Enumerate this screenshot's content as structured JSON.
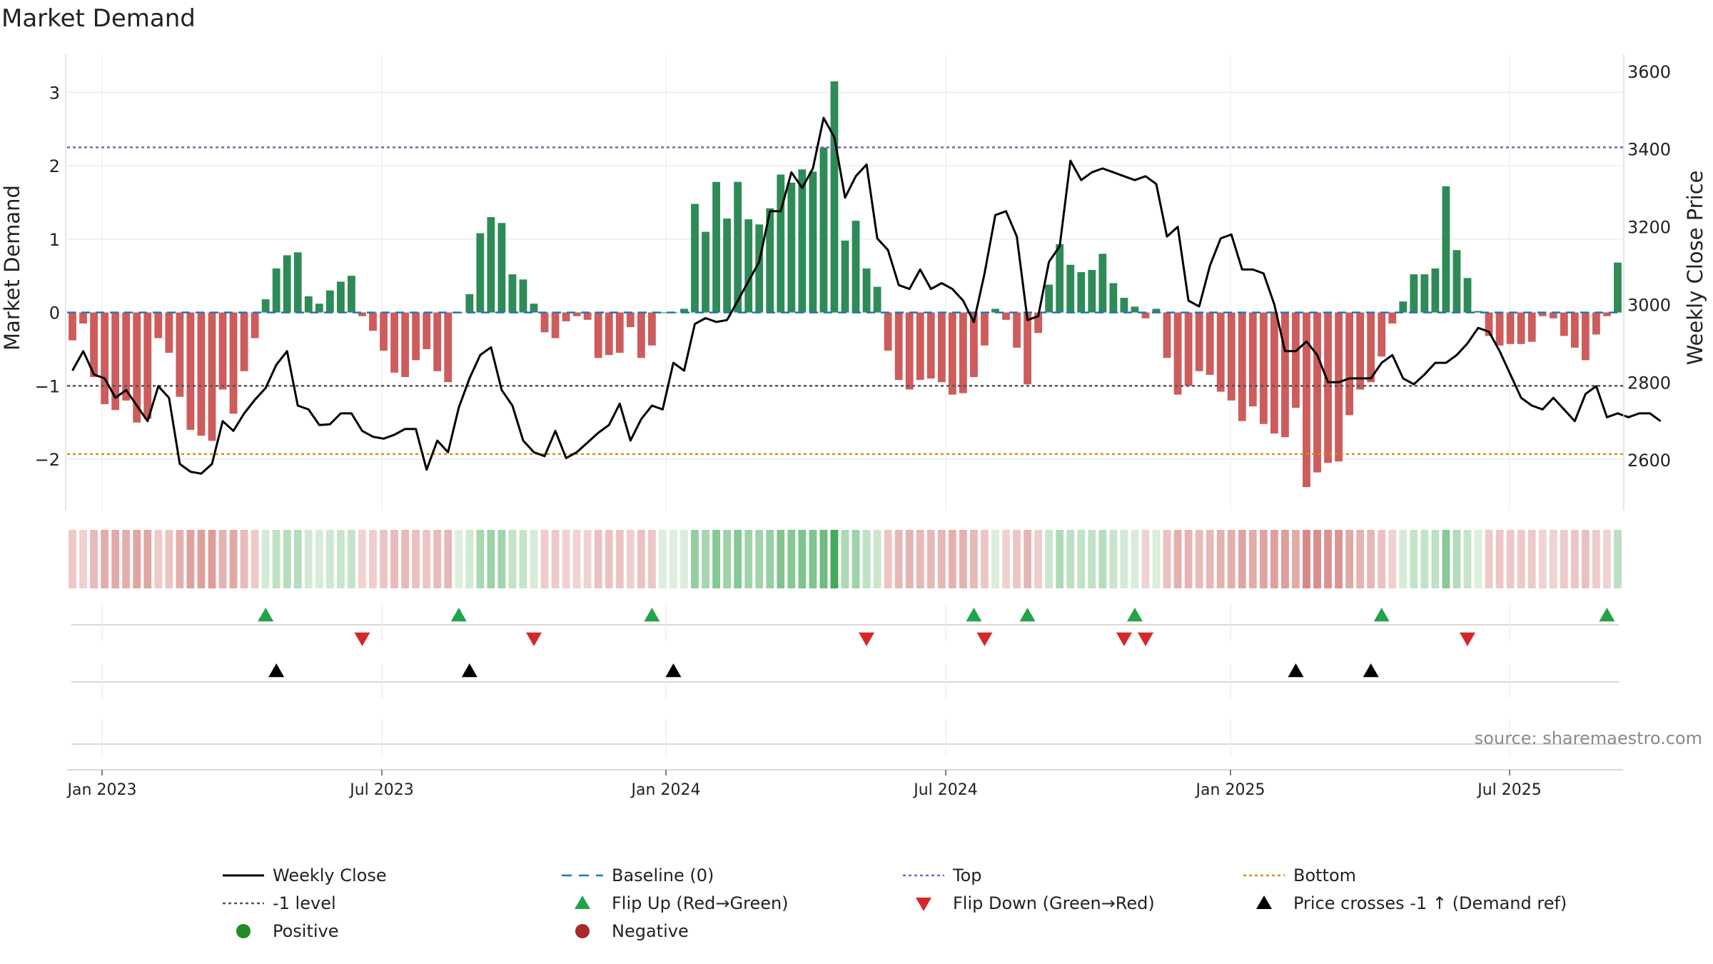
{
  "chart_data": {
    "type": "bar",
    "title": "Market Demand",
    "ylabel_left": "Market Demand",
    "ylabel_right": "Weekly Close Price",
    "source": "source: sharemaestro.com",
    "x_ticks": [
      "Jan 2023",
      "Jul 2023",
      "Jan 2024",
      "Jul 2024",
      "Jan 2025",
      "Jul 2025"
    ],
    "y_ticks_left": [
      "3",
      "2",
      "1",
      "0",
      "−1",
      "−2"
    ],
    "y_ticks_right": [
      "3600",
      "3400",
      "3200",
      "3000",
      "2800",
      "2600"
    ],
    "ylim_left": [
      -2.7,
      3.5
    ],
    "ylim_right": [
      2470,
      3640
    ],
    "reference_levels": {
      "top": 2.25,
      "minus_one": -1,
      "bottom": -1.93,
      "baseline": 0
    },
    "colors": {
      "positive": "#2e8b57",
      "negative": "#cd5c5c",
      "line": "#000000",
      "top": "#6a6ac8",
      "bottom": "#d4910a",
      "minus_one": "#555555",
      "baseline": "#1f77b4",
      "flip_up": "#21a34a",
      "flip_down": "#d62728",
      "cross": "#000000"
    },
    "series": [
      {
        "name": "Market Demand",
        "values": [
          -0.38,
          -0.15,
          -0.88,
          -1.25,
          -1.33,
          -1.2,
          -1.5,
          -1.45,
          -0.35,
          -0.55,
          -1.15,
          -1.6,
          -1.68,
          -1.75,
          -1.05,
          -1.38,
          -0.8,
          -0.35,
          0.18,
          0.6,
          0.78,
          0.82,
          0.22,
          0.12,
          0.3,
          0.42,
          0.5,
          -0.05,
          -0.25,
          -0.52,
          -0.82,
          -0.88,
          -0.65,
          -0.5,
          -0.8,
          -0.95,
          0,
          0.25,
          1.08,
          1.3,
          1.22,
          0.52,
          0.45,
          0.12,
          -0.27,
          -0.35,
          -0.12,
          -0.05,
          -0.1,
          -0.62,
          -0.58,
          -0.55,
          -0.2,
          -0.62,
          -0.45,
          0,
          0,
          0.05,
          1.48,
          1.1,
          1.78,
          1.28,
          1.78,
          1.27,
          1.2,
          1.42,
          1.88,
          1.77,
          1.95,
          1.92,
          2.25,
          3.15,
          0.98,
          1.25,
          0.6,
          0.35,
          -0.52,
          -0.92,
          -1.05,
          -0.92,
          -0.9,
          -0.95,
          -1.12,
          -1.1,
          -0.88,
          -0.45,
          0.05,
          -0.1,
          -0.48,
          -0.98,
          -0.28,
          0.38,
          0.93,
          0.65,
          0.55,
          0.58,
          0.8,
          0.4,
          0.2,
          0.08,
          -0.08,
          0.05,
          -0.62,
          -1.12,
          -1.0,
          -0.8,
          -0.85,
          -1.08,
          -1.2,
          -1.48,
          -1.28,
          -1.52,
          -1.65,
          -1.7,
          -1.3,
          -2.38,
          -2.18,
          -2.05,
          -2.03,
          -1.4,
          -1.05,
          -0.95,
          -0.6,
          -0.15,
          0.15,
          0.52,
          0.52,
          0.6,
          1.72,
          0.85,
          0.47,
          0.02,
          -0.32,
          -0.45,
          -0.43,
          -0.43,
          -0.4,
          -0.05,
          -0.08,
          -0.32,
          -0.48,
          -0.65,
          -0.3,
          -0.05,
          0.68
        ]
      },
      {
        "name": "Weekly Close",
        "values": [
          2830,
          2880,
          2820,
          2810,
          2760,
          2780,
          2740,
          2700,
          2790,
          2760,
          2590,
          2570,
          2565,
          2590,
          2700,
          2675,
          2720,
          2755,
          2785,
          2845,
          2880,
          2740,
          2730,
          2690,
          2692,
          2720,
          2720,
          2675,
          2660,
          2655,
          2665,
          2680,
          2680,
          2575,
          2650,
          2620,
          2735,
          2810,
          2870,
          2890,
          2780,
          2740,
          2650,
          2620,
          2610,
          2675,
          2605,
          2620,
          2645,
          2670,
          2690,
          2745,
          2650,
          2705,
          2740,
          2730,
          2850,
          2830,
          2950,
          2965,
          2955,
          2960,
          3010,
          3060,
          3110,
          3240,
          3240,
          3340,
          3300,
          3350,
          3480,
          3430,
          3275,
          3330,
          3360,
          3170,
          3140,
          3050,
          3040,
          3090,
          3040,
          3055,
          3040,
          3010,
          2955,
          3080,
          3230,
          3240,
          3175,
          2960,
          2970,
          3110,
          3150,
          3370,
          3320,
          3340,
          3350,
          3340,
          3330,
          3320,
          3330,
          3310,
          3175,
          3200,
          3010,
          2995,
          3100,
          3170,
          3180,
          3090,
          3090,
          3080,
          3000,
          2880,
          2880,
          2905,
          2870,
          2800,
          2800,
          2810,
          2810,
          2810,
          2850,
          2870,
          2810,
          2795,
          2820,
          2850,
          2850,
          2870,
          2900,
          2940,
          2930,
          2880,
          2820,
          2760,
          2740,
          2730,
          2760,
          2730,
          2700,
          2770,
          2790,
          2710,
          2720,
          2710,
          2720,
          2720,
          2700
        ]
      }
    ],
    "strip": {
      "label": "demand heat strip"
    },
    "markers": {
      "flip_up": [
        18,
        36,
        54,
        84,
        89,
        99,
        122,
        143
      ],
      "flip_down": [
        27,
        43,
        74,
        85,
        98,
        100,
        130
      ],
      "price_cross": [
        19,
        37,
        56,
        114,
        121
      ]
    },
    "legend": [
      {
        "label": "Weekly Close",
        "marker": "solid-line"
      },
      {
        "label": "Baseline (0)",
        "marker": "dash-line"
      },
      {
        "label": "Top",
        "marker": "dot-line-purple"
      },
      {
        "label": "Bottom",
        "marker": "dot-line-orange"
      },
      {
        "label": "-1 level",
        "marker": "dot-line-gray"
      },
      {
        "label": "Flip Up (Red→Green)",
        "marker": "triangle-up-green"
      },
      {
        "label": "Flip Down (Green→Red)",
        "marker": "triangle-down-red"
      },
      {
        "label": "Price crosses -1 ↑ (Demand ref)",
        "marker": "triangle-up-black"
      },
      {
        "label": "Positive",
        "marker": "circle-green"
      },
      {
        "label": "Negative",
        "marker": "circle-red"
      }
    ]
  }
}
